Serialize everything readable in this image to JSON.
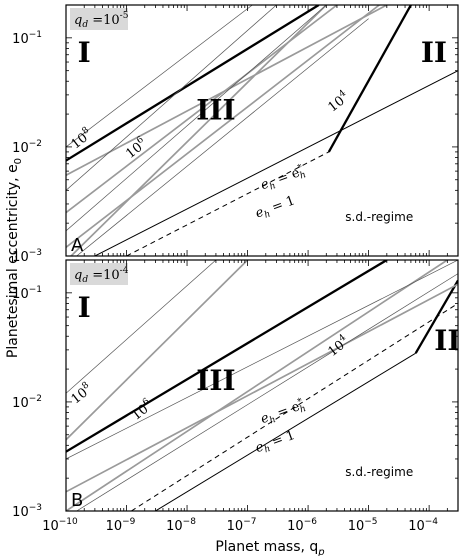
{
  "figure": {
    "ylabel": "Planetesimal eccentricity, e",
    "ylabel_sub": "0",
    "xlabel": "Planet mass, q",
    "xlabel_sub": "p"
  },
  "chart_data": [
    {
      "panel": "A",
      "type": "line",
      "x_scale": "log",
      "y_scale": "log",
      "xlim": [
        1e-10,
        0.0003
      ],
      "ylim": [
        0.001,
        0.2
      ],
      "qd_label": "q_d = 10^-5",
      "regions": [
        {
          "label": "I",
          "x": 2e-10,
          "y": 0.07
        },
        {
          "label": "III",
          "x": 3e-08,
          "y": 0.021
        },
        {
          "label": "II",
          "x": 0.00012,
          "y": 0.07
        }
      ],
      "series": [
        {
          "role": "thick-boundary",
          "x": [
            1e-10,
            1.5e-06
          ],
          "y": [
            0.0075,
            0.2
          ]
        },
        {
          "role": "thick-boundary",
          "x": [
            2.2e-06,
            5e-05
          ],
          "y": [
            0.009,
            0.2
          ]
        },
        {
          "role": "eh-1",
          "x": [
            3e-10,
            0.0003
          ],
          "y": [
            0.001,
            0.05
          ]
        },
        {
          "role": "eh-star",
          "x": [
            1e-09,
            2.2e-06
          ],
          "y": [
            0.001,
            0.009
          ]
        },
        {
          "role": "contour-gray",
          "x": [
            1e-10,
            2e-05
          ],
          "y": [
            0.0055,
            0.2
          ]
        },
        {
          "role": "contour-gray",
          "x": [
            1e-10,
            3e-06
          ],
          "y": [
            0.0025,
            0.2
          ]
        },
        {
          "role": "contour-gray",
          "x": [
            1e-10,
            1.5e-05
          ],
          "y": [
            0.0012,
            0.2
          ]
        },
        {
          "role": "contour-gray",
          "x": [
            1e-10,
            2e-06
          ],
          "y": [
            0.0009,
            0.2
          ]
        },
        {
          "role": "contour-thin",
          "x": [
            1e-10,
            1.2e-07
          ],
          "y": [
            0.01,
            0.2
          ]
        },
        {
          "role": "contour-thin",
          "x": [
            1e-10,
            3e-07
          ],
          "y": [
            0.004,
            0.2
          ]
        },
        {
          "role": "contour-thin",
          "x": [
            1e-10,
            2e-06
          ],
          "y": [
            0.0017,
            0.2
          ]
        },
        {
          "role": "contour-thin",
          "x": [
            1.5e-10,
            1e-05
          ],
          "y": [
            0.001,
            0.15
          ]
        }
      ],
      "annotations": [
        {
          "text": "10",
          "sup": "8",
          "x": 2e-10,
          "y": 0.011,
          "rotate": -38
        },
        {
          "text": "10",
          "sup": "6",
          "x": 1.6e-09,
          "y": 0.009,
          "rotate": -38
        },
        {
          "text": "10",
          "sup": "4",
          "x": 3.5e-06,
          "y": 0.024,
          "rotate": -38
        },
        {
          "text": "e",
          "sub": "h",
          "rest": " = e",
          "rest_sub": "h",
          "rest_sup": "*",
          "x": 4e-07,
          "y": 0.0048,
          "rotate": -20
        },
        {
          "text": "e",
          "sub": "h",
          "rest": " = 1",
          "x": 3e-07,
          "y": 0.0026,
          "rotate": -20
        },
        {
          "text": "s.d.-regime",
          "x": 1.5e-05,
          "y": 0.0021,
          "rotate": 0
        }
      ]
    },
    {
      "panel": "B",
      "type": "line",
      "x_scale": "log",
      "y_scale": "log",
      "xlim": [
        1e-10,
        0.0003
      ],
      "ylim": [
        0.001,
        0.2
      ],
      "qd_label": "q_d = 10^-4",
      "regions": [
        {
          "label": "I",
          "x": 2e-10,
          "y": 0.07
        },
        {
          "label": "III",
          "x": 3e-08,
          "y": 0.015
        },
        {
          "label": "II",
          "x": 0.0002,
          "y": 0.035
        }
      ],
      "series": [
        {
          "role": "thick-boundary",
          "x": [
            1e-10,
            2e-05
          ],
          "y": [
            0.0035,
            0.2
          ]
        },
        {
          "role": "thick-boundary",
          "x": [
            6e-05,
            0.0003
          ],
          "y": [
            0.028,
            0.13
          ]
        },
        {
          "role": "eh-1",
          "x": [
            3e-09,
            6e-05
          ],
          "y": [
            0.001,
            0.028
          ]
        },
        {
          "role": "eh-star",
          "x": [
            1.2e-09,
            0.0003
          ],
          "y": [
            0.001,
            0.08
          ]
        },
        {
          "role": "contour-gray",
          "x": [
            1e-10,
            1e-07
          ],
          "y": [
            0.0045,
            0.2
          ]
        },
        {
          "role": "contour-gray",
          "x": [
            1e-10,
            0.0003
          ],
          "y": [
            0.0015,
            0.12
          ]
        },
        {
          "role": "contour-gray",
          "x": [
            1e-10,
            0.0002
          ],
          "y": [
            0.001,
            0.2
          ]
        },
        {
          "role": "contour-thin",
          "x": [
            1e-10,
            3e-08
          ],
          "y": [
            0.012,
            0.2
          ]
        },
        {
          "role": "contour-thin",
          "x": [
            1e-10,
            0.0003
          ],
          "y": [
            0.003,
            0.2
          ]
        },
        {
          "role": "contour-thin",
          "x": [
            1.5e-10,
            0.0003
          ],
          "y": [
            0.001,
            0.15
          ]
        }
      ],
      "annotations": [
        {
          "text": "10",
          "sup": "8",
          "x": 2e-10,
          "y": 0.011,
          "rotate": -38
        },
        {
          "text": "10",
          "sup": "6",
          "x": 2e-09,
          "y": 0.0078,
          "rotate": -38
        },
        {
          "text": "10",
          "sup": "4",
          "x": 3.5e-06,
          "y": 0.03,
          "rotate": -38
        },
        {
          "text": "e",
          "sub": "h",
          "rest": " = e",
          "rest_sub": "h",
          "rest_sup": "*",
          "x": 4e-07,
          "y": 0.0075,
          "rotate": -20
        },
        {
          "text": "e",
          "sub": "h",
          "rest": " = 1",
          "x": 3e-07,
          "y": 0.004,
          "rotate": -20
        },
        {
          "text": "s.d.-regime",
          "x": 1.5e-05,
          "y": 0.0021,
          "rotate": 0
        }
      ]
    }
  ],
  "axes": {
    "x_ticks": [
      "10",
      "10",
      "10",
      "10",
      "10",
      "10",
      "10"
    ],
    "x_tick_exps": [
      "−10",
      "−9",
      "−8",
      "−7",
      "−6",
      "−5",
      "−4"
    ],
    "y_ticks": [
      "10",
      "10",
      "10"
    ],
    "y_tick_exps": [
      "−3",
      "−2",
      "−1"
    ]
  },
  "colors": {
    "gray_contour": "#9a9a9a",
    "thin_contour": "#555555",
    "qd_box": "#d9d9d9",
    "ink": "#000000"
  }
}
